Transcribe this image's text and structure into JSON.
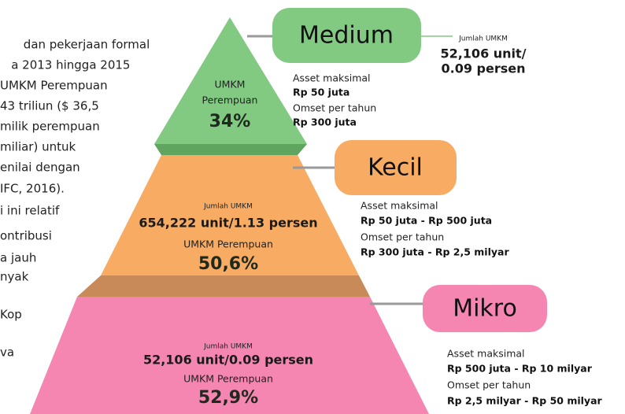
{
  "left_text": {
    "lines": [
      "dan pekerjaan formal",
      "a 2013 hingga 2015",
      "UMKM Perempuan",
      "43 triliun ($ 36,5",
      "milik perempuan",
      "miliar) untuk",
      "enilai dengan",
      "IFC, 2016).",
      "i ini relatif",
      "ontribusi",
      "a jauh",
      "nyak",
      "Kop",
      "va"
    ]
  },
  "tiers": [
    {
      "label": "Medium",
      "pyramid": {
        "line1": "UMKM",
        "line2": "Perempuan",
        "share": "34%"
      },
      "side_count": {
        "caption": "Jumlah UMKM",
        "line1": "52,106 unit/",
        "line2": "0.09 persen"
      },
      "asset_label": "Asset maksimal",
      "asset": "Rp 50 juta",
      "omset_label": "Omset per tahun",
      "omset": "Rp 300 juta"
    },
    {
      "label": "Kecil",
      "pyramid": {
        "caption": "Jumlah UMKM",
        "count": "654,222 unit/1.13 persen",
        "line2": "UMKM Perempuan",
        "share": "50,6%"
      },
      "asset_label": "Asset maksimal",
      "asset": "Rp 50 juta - Rp 500 juta",
      "omset_label": "Omset per tahun",
      "omset": "Rp 300 juta - Rp 2,5 milyar"
    },
    {
      "label": "Mikro",
      "pyramid": {
        "caption": "Jumlah UMKM",
        "count": "52,106 unit/0.09 persen",
        "line2": "UMKM Perempuan",
        "share": "52,9%"
      },
      "asset_label": "Asset maksimal",
      "asset": "Rp 500 juta - Rp 10 milyar",
      "omset_label": "Omset per tahun",
      "omset": "Rp 2,5 milyar - Rp 50 milyar"
    }
  ]
}
